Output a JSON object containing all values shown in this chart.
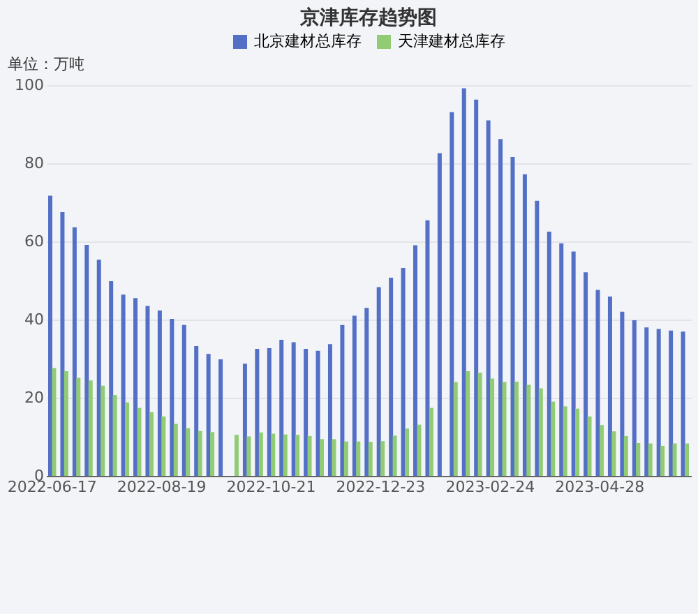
{
  "chart_data": {
    "type": "bar",
    "title": "京津库存趋势图",
    "ylabel": "单位：万吨",
    "categories": [
      "2022-06-17",
      null,
      null,
      null,
      null,
      null,
      null,
      null,
      null,
      "2022-08-19",
      null,
      null,
      null,
      null,
      null,
      null,
      null,
      null,
      "2022-10-21",
      null,
      null,
      null,
      null,
      null,
      null,
      null,
      null,
      "2022-12-23",
      null,
      null,
      null,
      null,
      null,
      null,
      null,
      null,
      "2023-02-24",
      null,
      null,
      null,
      null,
      null,
      null,
      null,
      null,
      "2023-04-28",
      null,
      null,
      null,
      null,
      null,
      null,
      null
    ],
    "series": [
      {
        "name": "北京建材总库存",
        "color": "#5470c6",
        "values": [
          71.7,
          67.5,
          63.6,
          59.1,
          55.3,
          49.8,
          46.4,
          45.5,
          43.5,
          42.3,
          40.2,
          38.6,
          33.2,
          31.2,
          29.8,
          null,
          28.7,
          32.5,
          32.7,
          34.8,
          34.2,
          32.5,
          32.0,
          33.7,
          38.6,
          41.0,
          43.0,
          48.3,
          50.7,
          53.2,
          59.0,
          65.4,
          82.6,
          93.1,
          99.2,
          96.3,
          91.0,
          86.2,
          81.6,
          77.2,
          70.4,
          62.5,
          59.5,
          57.4,
          52.1,
          47.6,
          45.9,
          42.0,
          39.8,
          38.0,
          37.6,
          37.2,
          36.9
        ]
      },
      {
        "name": "天津建材总库存",
        "color": "#91cc75",
        "values": [
          27.6,
          26.8,
          25.1,
          24.4,
          23.1,
          20.7,
          18.8,
          17.4,
          16.3,
          15.2,
          13.3,
          12.2,
          11.5,
          11.2,
          null,
          10.5,
          10.1,
          11.1,
          10.8,
          10.6,
          10.5,
          10.2,
          9.4,
          9.4,
          8.8,
          8.8,
          8.7,
          8.9,
          10.3,
          12.1,
          13.1,
          17.4,
          null,
          24.0,
          26.8,
          26.4,
          24.9,
          24.0,
          24.1,
          23.3,
          22.4,
          19.0,
          17.8,
          17.2,
          15.2,
          13.0,
          11.4,
          10.2,
          8.4,
          8.3,
          7.7,
          8.3,
          8.3
        ]
      }
    ],
    "ylim": [
      0,
      100
    ],
    "yticks": [
      0,
      20,
      40,
      60,
      80,
      100
    ],
    "grid": "y",
    "legend": "top"
  }
}
